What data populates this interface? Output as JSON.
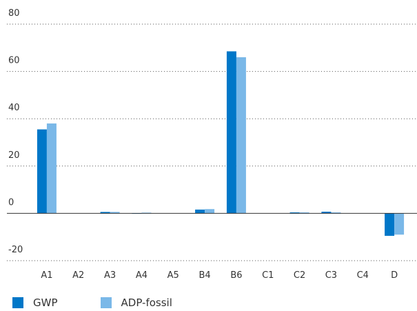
{
  "chart_data": {
    "type": "bar",
    "categories": [
      "A1",
      "A2",
      "A3",
      "A4",
      "A5",
      "B4",
      "B6",
      "C1",
      "C2",
      "C3",
      "C4",
      "D"
    ],
    "series": [
      {
        "name": "GWP",
        "color": "#0077c8",
        "values": [
          35.5,
          0,
          0.6,
          0.1,
          0,
          1.6,
          68.5,
          0,
          0.4,
          0.7,
          0,
          -9.5
        ]
      },
      {
        "name": "ADP-fossil",
        "color": "#7ab8e8",
        "values": [
          38,
          0,
          0.6,
          0.3,
          0,
          1.8,
          66,
          0,
          0.4,
          0.4,
          0,
          -9
        ]
      }
    ],
    "yticks": [
      "80",
      "60",
      "40",
      "20",
      "0",
      "-20"
    ],
    "ylim": [
      -20,
      80
    ],
    "grid": true,
    "legend_position": "bottom-left",
    "title": "",
    "xlabel": "",
    "ylabel": ""
  }
}
